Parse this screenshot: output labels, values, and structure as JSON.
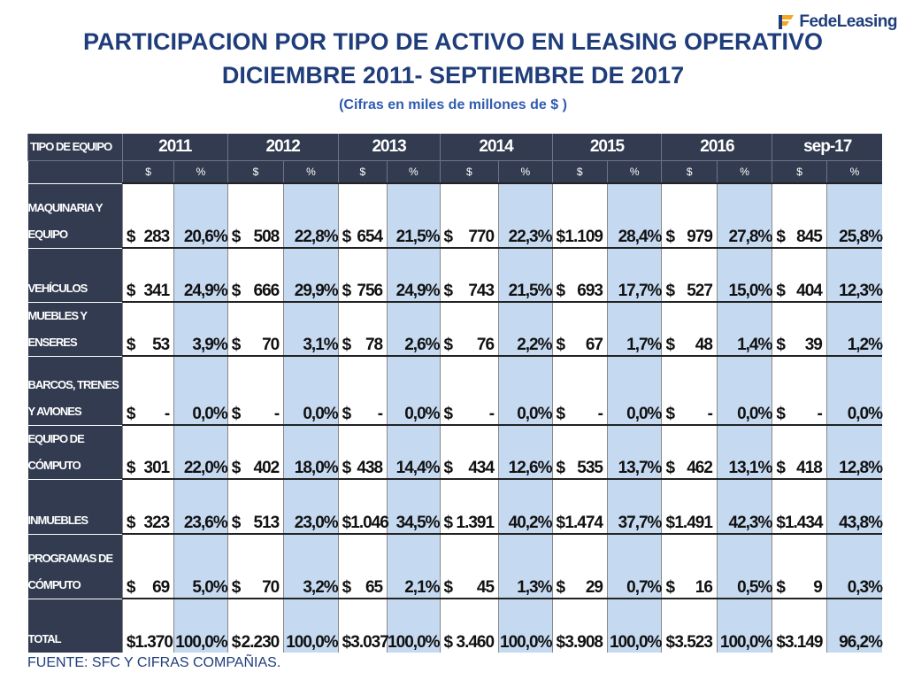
{
  "brand": {
    "logo_text": "FedeLeasing",
    "logo_color": "#f5a623"
  },
  "title_line1": "PARTICIPACION POR TIPO DE ACTIVO EN  LEASING OPERATIVO",
  "title_line2": "DICIEMBRE 2011- SEPTIEMBRE DE 2017",
  "subtitle": "(Cifras en miles de millones de $ )",
  "table": {
    "corner_label": "TIPO DE EQUIPO",
    "years": [
      "2011",
      "2012",
      "2013",
      "2014",
      "2015",
      "2016",
      "sep-17"
    ],
    "sub_money": "$",
    "sub_pct": "%",
    "rows": [
      {
        "label": "MAQUINARIA Y EQUIPO",
        "values": [
          "283",
          "508",
          "654",
          "770",
          "1.109",
          "979",
          "845"
        ],
        "pcts": [
          "20,6%",
          "22,8%",
          "21,5%",
          "22,3%",
          "28,4%",
          "27,8%",
          "25,8%"
        ]
      },
      {
        "label": "VEHÍCULOS",
        "values": [
          "341",
          "666",
          "756",
          "743",
          "693",
          "527",
          "404"
        ],
        "pcts": [
          "24,9%",
          "29,9%",
          "24,9%",
          "21,5%",
          "17,7%",
          "15,0%",
          "12,3%"
        ]
      },
      {
        "label": "MUEBLES Y ENSERES",
        "values": [
          "53",
          "70",
          "78",
          "76",
          "67",
          "48",
          "39"
        ],
        "pcts": [
          "3,9%",
          "3,1%",
          "2,6%",
          "2,2%",
          "1,7%",
          "1,4%",
          "1,2%"
        ]
      },
      {
        "label": "BARCOS, TRENES Y AVIONES",
        "values": [
          "-",
          "-",
          "-",
          "-",
          "-",
          "-",
          "-"
        ],
        "pcts": [
          "0,0%",
          "0,0%",
          "0,0%",
          "0,0%",
          "0,0%",
          "0,0%",
          "0,0%"
        ]
      },
      {
        "label": "EQUIPO DE CÓMPUTO",
        "values": [
          "301",
          "402",
          "438",
          "434",
          "535",
          "462",
          "418"
        ],
        "pcts": [
          "22,0%",
          "18,0%",
          "14,4%",
          "12,6%",
          "13,7%",
          "13,1%",
          "12,8%"
        ]
      },
      {
        "label": "INMUEBLES",
        "values": [
          "323",
          "513",
          "1.046",
          "1.391",
          "1.474",
          "1.491",
          "1.434"
        ],
        "pcts": [
          "23,6%",
          "23,0%",
          "34,5%",
          "40,2%",
          "37,7%",
          "42,3%",
          "43,8%"
        ]
      },
      {
        "label": "PROGRAMAS   DE CÓMPUTO",
        "values": [
          "69",
          "70",
          "65",
          "45",
          "29",
          "16",
          "9"
        ],
        "pcts": [
          "5,0%",
          "3,2%",
          "2,1%",
          "1,3%",
          "0,7%",
          "0,5%",
          "0,3%"
        ]
      },
      {
        "label": "TOTAL",
        "values": [
          "1.370",
          "2.230",
          "3.037",
          "3.460",
          "3.908",
          "3.523",
          "3.149"
        ],
        "pcts": [
          "100,0%",
          "100,0%",
          "100,0%",
          "100,0%",
          "100,0%",
          "100,0%",
          "96,2%"
        ]
      }
    ]
  },
  "footer": "FUENTE: SFC Y CIFRAS COMPAÑIAS.",
  "colors": {
    "header_bg": "#323b4f",
    "pct_bg": "#c5d9f1",
    "title": "#1f3d7a"
  }
}
